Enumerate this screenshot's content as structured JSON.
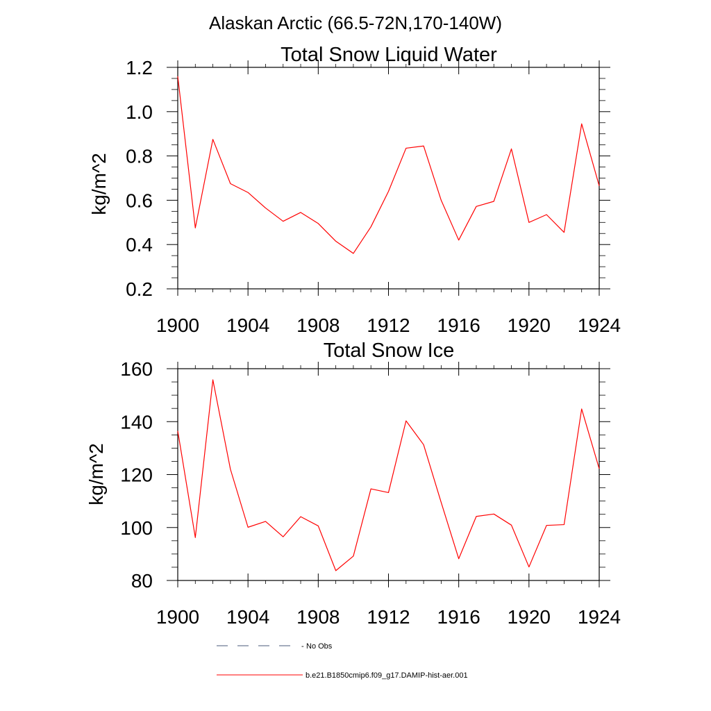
{
  "figure": {
    "title": "Alaskan Arctic (66.5-72N,170-140W)"
  },
  "chart_data": [
    {
      "type": "line",
      "title": "Total Snow Liquid Water",
      "xlabel": "",
      "ylabel": "kg/m^2",
      "xlim": [
        1900,
        1924
      ],
      "ylim": [
        0.2,
        1.2
      ],
      "x_ticks": [
        1900,
        1904,
        1908,
        1912,
        1916,
        1920,
        1924
      ],
      "x_tick_labels": [
        "1900",
        "1904",
        "1908",
        "1912",
        "1916",
        "1920",
        "1924"
      ],
      "y_ticks": [
        0.2,
        0.4,
        0.6,
        0.8,
        1.0,
        1.2
      ],
      "y_tick_labels": [
        "0.2",
        "0.4",
        "0.6",
        "0.8",
        "1.0",
        "1.2"
      ],
      "grid": false,
      "x": [
        1900,
        1901,
        1902,
        1903,
        1904,
        1905,
        1906,
        1907,
        1908,
        1909,
        1910,
        1911,
        1912,
        1913,
        1914,
        1915,
        1916,
        1917,
        1918,
        1919,
        1920,
        1921,
        1922,
        1923,
        1924
      ],
      "series": [
        {
          "name": "b.e21.B1850cmip6.f09_g17.DAMIP-hist-aer.001",
          "color": "#ff0000",
          "values": [
            1.16,
            0.475,
            0.875,
            0.675,
            0.635,
            0.565,
            0.505,
            0.545,
            0.495,
            0.415,
            0.36,
            0.48,
            0.64,
            0.835,
            0.845,
            0.6,
            0.42,
            0.572,
            0.595,
            0.832,
            0.5,
            0.535,
            0.455,
            0.945,
            0.665
          ]
        }
      ]
    },
    {
      "type": "line",
      "title": "Total Snow Ice",
      "xlabel": "",
      "ylabel": "kg/m^2",
      "xlim": [
        1900,
        1924
      ],
      "ylim": [
        80,
        160
      ],
      "x_ticks": [
        1900,
        1904,
        1908,
        1912,
        1916,
        1920,
        1924
      ],
      "x_tick_labels": [
        "1900",
        "1904",
        "1908",
        "1912",
        "1916",
        "1920",
        "1924"
      ],
      "y_ticks": [
        80,
        100,
        120,
        140,
        160
      ],
      "y_tick_labels": [
        "80",
        "100",
        "120",
        "140",
        "160"
      ],
      "grid": false,
      "x": [
        1900,
        1901,
        1902,
        1903,
        1904,
        1905,
        1906,
        1907,
        1908,
        1909,
        1910,
        1911,
        1912,
        1913,
        1914,
        1915,
        1916,
        1917,
        1918,
        1919,
        1920,
        1921,
        1922,
        1923,
        1924
      ],
      "series": [
        {
          "name": "b.e21.B1850cmip6.f09_g17.DAMIP-hist-aer.001",
          "color": "#ff0000",
          "values": [
            136.5,
            96.2,
            155.8,
            122.0,
            100.1,
            102.3,
            96.5,
            104.1,
            100.6,
            83.7,
            89.2,
            114.6,
            113.2,
            140.3,
            131.3,
            109.5,
            88.2,
            104.2,
            105.1,
            100.9,
            85.1,
            100.8,
            101.1,
            144.8,
            122.2
          ]
        }
      ]
    }
  ],
  "legend": {
    "placement": "bottom",
    "entries": [
      {
        "label": "No Obs",
        "style": "dashed",
        "color": "#4a5a7a"
      },
      {
        "label": "b.e21.B1850cmip6.f09_g17.DAMIP-hist-aer.001",
        "style": "solid",
        "color": "#ff0000"
      }
    ]
  }
}
